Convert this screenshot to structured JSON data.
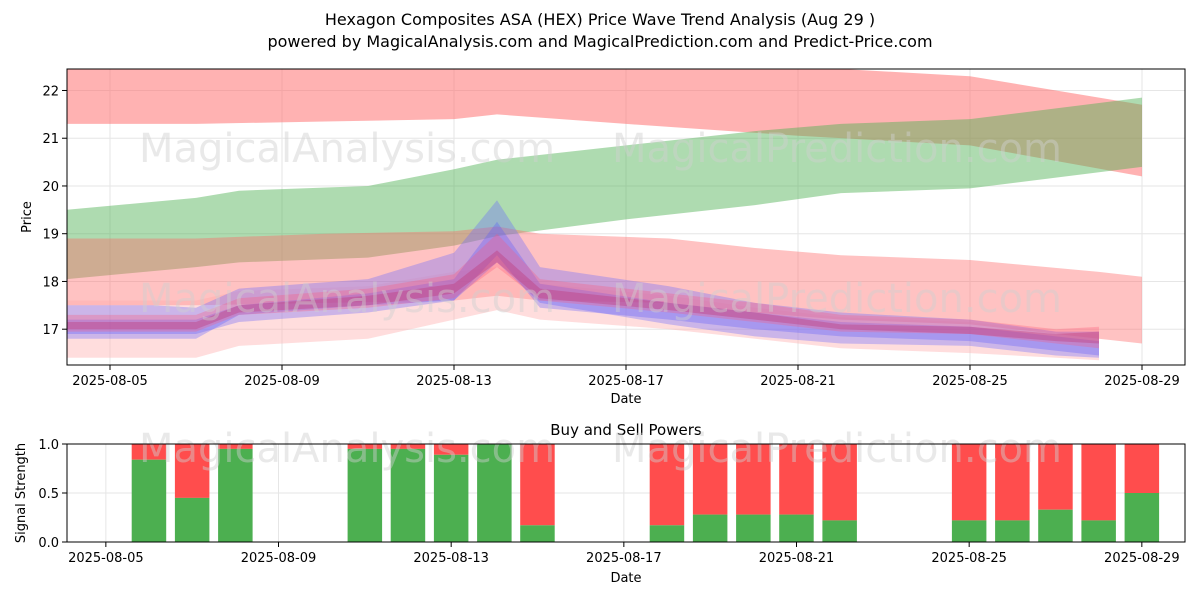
{
  "title_line1": "Hexagon Composites ASA (HEX) Price Wave Trend Analysis (Aug 29 )",
  "title_line2": "powered by MagicalAnalysis.com and MagicalPrediction.com and Predict-Price.com",
  "watermarks": [
    "MagicalAnalysis.com",
    "MagicalPrediction.com"
  ],
  "chart_data": [
    {
      "type": "area",
      "xlabel": "Date",
      "ylabel": "Price",
      "x_ticks": [
        "2025-08-05",
        "2025-08-09",
        "2025-08-13",
        "2025-08-17",
        "2025-08-21",
        "2025-08-25",
        "2025-08-29"
      ],
      "y_ticks": [
        17,
        18,
        19,
        20,
        21,
        22
      ],
      "ylim": [
        16.25,
        22.45
      ],
      "xlim": [
        "2025-08-04",
        "2025-08-30"
      ],
      "grid": true,
      "bands": [
        {
          "color": "#ff6666",
          "opacity": 0.5,
          "x": [
            "2025-08-04",
            "2025-08-07",
            "2025-08-10",
            "2025-08-13",
            "2025-08-14",
            "2025-08-17",
            "2025-08-21",
            "2025-08-25",
            "2025-08-29"
          ],
          "upper": [
            22.6,
            22.6,
            22.6,
            22.6,
            22.6,
            22.6,
            22.5,
            22.3,
            21.7
          ],
          "lower": [
            21.3,
            21.3,
            21.35,
            21.4,
            21.5,
            21.3,
            21.05,
            20.85,
            20.2
          ]
        },
        {
          "color": "#4caf50",
          "opacity": 0.45,
          "x": [
            "2025-08-04",
            "2025-08-07",
            "2025-08-08",
            "2025-08-11",
            "2025-08-13",
            "2025-08-14",
            "2025-08-17",
            "2025-08-20",
            "2025-08-22",
            "2025-08-25",
            "2025-08-29"
          ],
          "upper": [
            19.5,
            19.75,
            19.9,
            20.0,
            20.35,
            20.55,
            20.85,
            21.15,
            21.3,
            21.4,
            21.85
          ],
          "lower": [
            18.05,
            18.3,
            18.4,
            18.5,
            18.75,
            18.95,
            19.3,
            19.6,
            19.85,
            19.95,
            20.4
          ]
        },
        {
          "color": "#ff6666",
          "opacity": 0.4,
          "x": [
            "2025-08-04",
            "2025-08-07",
            "2025-08-10",
            "2025-08-13",
            "2025-08-14",
            "2025-08-15",
            "2025-08-18",
            "2025-08-20",
            "2025-08-22",
            "2025-08-25",
            "2025-08-28",
            "2025-08-29"
          ],
          "upper": [
            18.9,
            18.9,
            19.0,
            19.05,
            19.15,
            19.0,
            18.9,
            18.7,
            18.55,
            18.45,
            18.2,
            18.1
          ],
          "lower": [
            17.5,
            17.5,
            17.55,
            17.6,
            17.7,
            17.6,
            17.55,
            17.35,
            17.2,
            17.1,
            16.8,
            16.7
          ]
        },
        {
          "color": "#ffaaaa",
          "opacity": 0.4,
          "x": [
            "2025-08-04",
            "2025-08-07",
            "2025-08-08",
            "2025-08-11",
            "2025-08-13",
            "2025-08-14",
            "2025-08-15",
            "2025-08-18",
            "2025-08-20",
            "2025-08-22",
            "2025-08-25",
            "2025-08-27",
            "2025-08-28"
          ],
          "upper": [
            17.6,
            17.6,
            17.8,
            17.9,
            18.2,
            18.3,
            17.95,
            17.7,
            17.45,
            17.25,
            17.15,
            16.95,
            16.9
          ],
          "lower": [
            16.4,
            16.4,
            16.65,
            16.8,
            17.2,
            17.4,
            17.2,
            17.0,
            16.8,
            16.6,
            16.5,
            16.4,
            16.35
          ]
        },
        {
          "color": "#6a6aff",
          "opacity": 0.35,
          "x": [
            "2025-08-04",
            "2025-08-06",
            "2025-08-07",
            "2025-08-08",
            "2025-08-11",
            "2025-08-13",
            "2025-08-14",
            "2025-08-15",
            "2025-08-18",
            "2025-08-20",
            "2025-08-22",
            "2025-08-25",
            "2025-08-27",
            "2025-08-28"
          ],
          "upper": [
            17.5,
            17.5,
            17.45,
            17.85,
            18.05,
            18.6,
            19.7,
            18.3,
            17.9,
            17.55,
            17.35,
            17.2,
            16.95,
            16.95
          ],
          "lower": [
            16.8,
            16.8,
            16.8,
            17.3,
            17.5,
            17.6,
            18.4,
            17.55,
            17.1,
            16.85,
            16.7,
            16.65,
            16.45,
            16.4
          ]
        },
        {
          "color": "#5555ff",
          "opacity": 0.3,
          "x": [
            "2025-08-04",
            "2025-08-07",
            "2025-08-08",
            "2025-08-11",
            "2025-08-13",
            "2025-08-14",
            "2025-08-15",
            "2025-08-18",
            "2025-08-20",
            "2025-08-22",
            "2025-08-25",
            "2025-08-27",
            "2025-08-28"
          ],
          "upper": [
            17.2,
            17.2,
            17.5,
            17.75,
            18.05,
            19.25,
            17.95,
            17.55,
            17.35,
            17.15,
            17.05,
            16.85,
            16.75
          ],
          "lower": [
            16.9,
            16.9,
            17.15,
            17.35,
            17.6,
            18.55,
            17.45,
            17.2,
            17.0,
            16.85,
            16.75,
            16.55,
            16.45
          ]
        },
        {
          "color": "#ff5577",
          "opacity": 0.3,
          "x": [
            "2025-08-04",
            "2025-08-07",
            "2025-08-08",
            "2025-08-11",
            "2025-08-13",
            "2025-08-14",
            "2025-08-15",
            "2025-08-18",
            "2025-08-20",
            "2025-08-22",
            "2025-08-25",
            "2025-08-27",
            "2025-08-28"
          ],
          "upper": [
            17.3,
            17.3,
            17.65,
            17.85,
            18.15,
            19.0,
            18.05,
            17.75,
            17.55,
            17.3,
            17.2,
            17.0,
            17.05
          ],
          "lower": [
            16.95,
            16.95,
            17.3,
            17.45,
            17.65,
            18.3,
            17.6,
            17.35,
            17.15,
            16.95,
            16.9,
            16.7,
            16.6
          ]
        },
        {
          "color": "#c03070",
          "opacity": 0.35,
          "x": [
            "2025-08-04",
            "2025-08-07",
            "2025-08-08",
            "2025-08-11",
            "2025-08-13",
            "2025-08-14",
            "2025-08-15",
            "2025-08-18",
            "2025-08-20",
            "2025-08-22",
            "2025-08-25",
            "2025-08-27",
            "2025-08-28"
          ],
          "upper": [
            17.15,
            17.15,
            17.5,
            17.7,
            17.95,
            18.65,
            17.85,
            17.55,
            17.35,
            17.1,
            17.05,
            16.9,
            16.95
          ],
          "lower": [
            17.0,
            17.0,
            17.35,
            17.5,
            17.75,
            18.4,
            17.65,
            17.4,
            17.2,
            17.0,
            16.9,
            16.75,
            16.7
          ]
        }
      ]
    },
    {
      "type": "bar",
      "title": "Buy and Sell Powers",
      "xlabel": "Date",
      "ylabel": "Signal Strength",
      "y_ticks": [
        "0.0",
        "0.5",
        "1.0"
      ],
      "ylim": [
        0,
        1
      ],
      "x_ticks": [
        "2025-08-05",
        "2025-08-09",
        "2025-08-13",
        "2025-08-17",
        "2025-08-21",
        "2025-08-25",
        "2025-08-29"
      ],
      "xlim": [
        "2025-08-04.1",
        "2025-08-30"
      ],
      "series": [
        {
          "name": "buy",
          "color": "#4caf50"
        },
        {
          "name": "sell",
          "color": "#ff4d4d"
        }
      ],
      "bars": [
        {
          "date": "2025-08-06",
          "buy": 0.84
        },
        {
          "date": "2025-08-07",
          "buy": 0.45
        },
        {
          "date": "2025-08-08",
          "buy": 0.95
        },
        {
          "date": "2025-08-11",
          "buy": 0.95
        },
        {
          "date": "2025-08-12",
          "buy": 0.95
        },
        {
          "date": "2025-08-13",
          "buy": 0.89
        },
        {
          "date": "2025-08-14",
          "buy": 1.0
        },
        {
          "date": "2025-08-15",
          "buy": 0.17
        },
        {
          "date": "2025-08-18",
          "buy": 0.17
        },
        {
          "date": "2025-08-19",
          "buy": 0.28
        },
        {
          "date": "2025-08-20",
          "buy": 0.28
        },
        {
          "date": "2025-08-21",
          "buy": 0.28
        },
        {
          "date": "2025-08-22",
          "buy": 0.22
        },
        {
          "date": "2025-08-25",
          "buy": 0.22
        },
        {
          "date": "2025-08-26",
          "buy": 0.22
        },
        {
          "date": "2025-08-27",
          "buy": 0.33
        },
        {
          "date": "2025-08-28",
          "buy": 0.22
        },
        {
          "date": "2025-08-29",
          "buy": 0.5
        }
      ]
    }
  ]
}
